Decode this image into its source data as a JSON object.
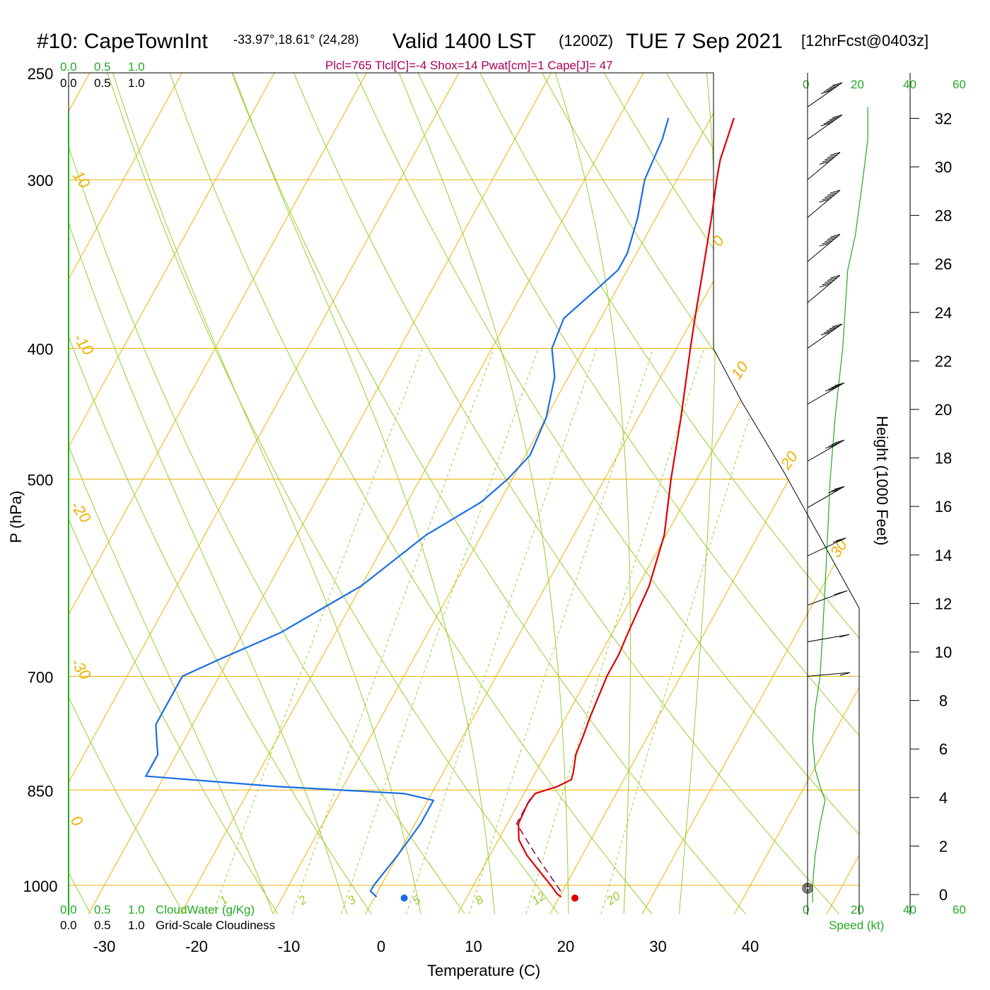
{
  "header": {
    "station": "#10: CapeTownInt",
    "coords": "-33.97°,18.61° (24,28)",
    "valid": "Valid 1400 LST",
    "utc": "(1200Z)",
    "date": "TUE 7 Sep 2021",
    "forecast": "[12hrFcst@0403z]",
    "stats": "Plcl=765 Tlcl[C]=-4 Shox=14 Pwat[cm]=1 Cape[J]= 47"
  },
  "scales": {
    "cloud_green_top": [
      "0.0",
      "0.5",
      "1.0"
    ],
    "cloud_black_top": [
      "0.0",
      "0.5",
      "1.0"
    ],
    "cloud_green_bottom": [
      "0.0",
      "0.5",
      "1.0"
    ],
    "cloud_black_bottom": [
      "0.0",
      "0.5",
      "1.0"
    ],
    "cloudwater_label": "CloudWater (g/Kg)",
    "cloudiness_label": "Grid-Scale Cloudiness",
    "speed_top": [
      "0",
      "20",
      "40",
      "60"
    ],
    "speed_bottom": [
      "0",
      "20",
      "40",
      "60"
    ],
    "speed_label": "Speed (kt)"
  },
  "colors": {
    "temperature": "#dd0000",
    "dewpoint": "#1a6ee6",
    "parcel": "#880044",
    "isotherm": "#f0b000",
    "dry_adiabat": "#99cc33",
    "moist_adiabat": "#99cc33",
    "mixing_ratio": "#99cc33",
    "wind_speed": "#22aa22",
    "barb": "#000000"
  },
  "chart_data": {
    "type": "skew-t",
    "xlabel": "Temperature (C)",
    "ylabel": "P (hPa)",
    "height_label": "Height (1000 Feet)",
    "x_ticks": [
      -30,
      -20,
      -10,
      0,
      10,
      20,
      30,
      40
    ],
    "p_ticks": [
      250,
      300,
      400,
      500,
      700,
      850,
      1000
    ],
    "height_ticks": [
      0,
      2,
      4,
      6,
      8,
      10,
      12,
      14,
      16,
      18,
      20,
      22,
      24,
      26,
      28,
      30,
      32
    ],
    "isotherm_labels": [
      {
        "text": "10",
        "temp": -10
      },
      {
        "text": "0",
        "temp": 0
      },
      {
        "text": "-10",
        "temp": -10
      },
      {
        "text": "-20",
        "temp": -20
      },
      {
        "text": "-30",
        "temp": -30
      },
      {
        "text": "0",
        "temp": 0
      },
      {
        "text": "10",
        "temp": 10
      },
      {
        "text": "20",
        "temp": 20
      },
      {
        "text": "30",
        "temp": 30
      }
    ],
    "mixing_ratio_labels": [
      "1",
      "2",
      "3",
      "5",
      "8",
      "12",
      "20"
    ],
    "temperature": [
      [
        1020,
        20.2
      ],
      [
        1015,
        19.6
      ],
      [
        1000,
        18.4
      ],
      [
        975,
        16.2
      ],
      [
        950,
        14.0
      ],
      [
        925,
        12.2
      ],
      [
        900,
        11.2
      ],
      [
        870,
        11.0
      ],
      [
        855,
        11.2
      ],
      [
        845,
        13.2
      ],
      [
        835,
        14.3
      ],
      [
        825,
        14.1
      ],
      [
        800,
        13.3
      ],
      [
        775,
        13.0
      ],
      [
        750,
        12.6
      ],
      [
        700,
        12.0
      ],
      [
        675,
        12.0
      ],
      [
        650,
        11.7
      ],
      [
        600,
        11.2
      ],
      [
        550,
        9.8
      ],
      [
        500,
        7.2
      ],
      [
        450,
        4.6
      ],
      [
        400,
        1.5
      ],
      [
        380,
        0.2
      ],
      [
        350,
        -1.8
      ],
      [
        320,
        -4.0
      ],
      [
        300,
        -5.7
      ],
      [
        290,
        -6.5
      ],
      [
        270,
        -7.5
      ]
    ],
    "dewpoint": [
      [
        1020,
        0.2
      ],
      [
        1010,
        -0.8
      ],
      [
        1000,
        -0.8
      ],
      [
        950,
        0.0
      ],
      [
        900,
        0.6
      ],
      [
        865,
        0.6
      ],
      [
        855,
        -3.0
      ],
      [
        845,
        -17.0
      ],
      [
        830,
        -32.0
      ],
      [
        810,
        -32.0
      ],
      [
        800,
        -32.0
      ],
      [
        780,
        -33.0
      ],
      [
        760,
        -34.0
      ],
      [
        700,
        -34.0
      ],
      [
        680,
        -31.0
      ],
      [
        650,
        -26.0
      ],
      [
        600,
        -20.0
      ],
      [
        550,
        -16.0
      ],
      [
        520,
        -12.0
      ],
      [
        500,
        -10.5
      ],
      [
        480,
        -9.5
      ],
      [
        450,
        -10.0
      ],
      [
        420,
        -11.5
      ],
      [
        400,
        -13.5
      ],
      [
        380,
        -14.0
      ],
      [
        360,
        -12.0
      ],
      [
        350,
        -11.0
      ],
      [
        340,
        -11.0
      ],
      [
        320,
        -12.0
      ],
      [
        300,
        -13.5
      ],
      [
        280,
        -14.0
      ],
      [
        270,
        -14.6
      ]
    ],
    "parcel": [
      [
        1010,
        19.8
      ],
      [
        950,
        15.0
      ],
      [
        900,
        11.0
      ],
      [
        860,
        11.0
      ]
    ],
    "surface_temp": 21.0,
    "surface_dewpoint": 2.5,
    "wind_speed_kt": [
      [
        1030,
        2
      ],
      [
        1000,
        2
      ],
      [
        950,
        3
      ],
      [
        900,
        5
      ],
      [
        865,
        7
      ],
      [
        845,
        5
      ],
      [
        820,
        3
      ],
      [
        780,
        2
      ],
      [
        740,
        3
      ],
      [
        700,
        5
      ],
      [
        650,
        6
      ],
      [
        600,
        7
      ],
      [
        550,
        8
      ],
      [
        500,
        9
      ],
      [
        450,
        11
      ],
      [
        400,
        14
      ],
      [
        350,
        16
      ],
      [
        330,
        19
      ],
      [
        300,
        22
      ],
      [
        280,
        24
      ],
      [
        265,
        24
      ]
    ],
    "wind_barbs": [
      {
        "p": 265,
        "dir": 235,
        "spd": 50
      },
      {
        "p": 280,
        "dir": 235,
        "spd": 50
      },
      {
        "p": 300,
        "dir": 230,
        "spd": 45
      },
      {
        "p": 320,
        "dir": 230,
        "spd": 45
      },
      {
        "p": 345,
        "dir": 230,
        "spd": 45
      },
      {
        "p": 370,
        "dir": 230,
        "spd": 45
      },
      {
        "p": 400,
        "dir": 235,
        "spd": 45
      },
      {
        "p": 440,
        "dir": 240,
        "spd": 40
      },
      {
        "p": 485,
        "dir": 240,
        "spd": 35
      },
      {
        "p": 525,
        "dir": 240,
        "spd": 25
      },
      {
        "p": 570,
        "dir": 245,
        "spd": 20
      },
      {
        "p": 620,
        "dir": 250,
        "spd": 15
      },
      {
        "p": 660,
        "dir": 260,
        "spd": 10
      },
      {
        "p": 700,
        "dir": 265,
        "spd": 10
      }
    ]
  }
}
